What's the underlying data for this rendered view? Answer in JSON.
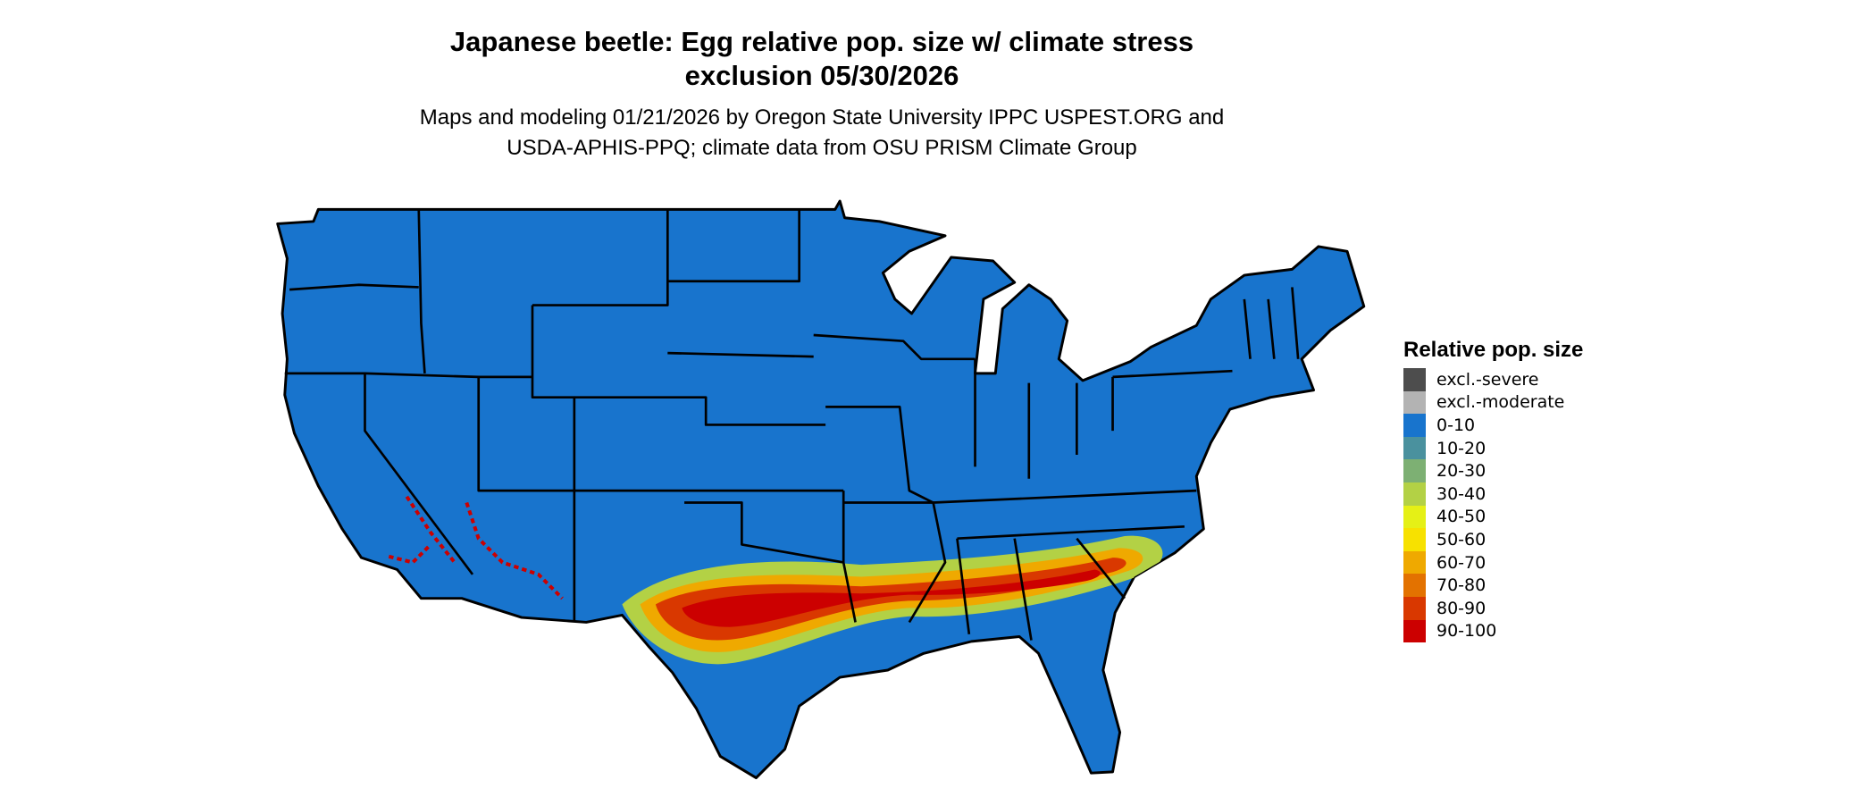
{
  "title": {
    "line1": "Japanese beetle: Egg relative pop. size w/ climate stress",
    "line2": "exclusion 05/30/2026"
  },
  "subtitle": {
    "line1": "Maps and modeling 01/21/2026 by Oregon State University IPPC USPEST.ORG and",
    "line2": "USDA-APHIS-PPQ; climate data from OSU PRISM Climate Group"
  },
  "map": {
    "region": "Contiguous United States",
    "base_color": "#1874CD",
    "border_color": "#000000"
  },
  "legend": {
    "title": "Relative pop. size",
    "items": [
      {
        "label": "excl.-severe",
        "color": "#4D4D4D"
      },
      {
        "label": "excl.-moderate",
        "color": "#B3B3B3"
      },
      {
        "label": "0-10",
        "color": "#1874CD"
      },
      {
        "label": "10-20",
        "color": "#4A919E"
      },
      {
        "label": "20-30",
        "color": "#7DB073"
      },
      {
        "label": "30-40",
        "color": "#B3D145"
      },
      {
        "label": "40-50",
        "color": "#E5F016"
      },
      {
        "label": "50-60",
        "color": "#F7E100"
      },
      {
        "label": "60-70",
        "color": "#EFA900"
      },
      {
        "label": "70-80",
        "color": "#E37200"
      },
      {
        "label": "80-90",
        "color": "#D93800"
      },
      {
        "label": "90-100",
        "color": "#CC0000"
      }
    ]
  }
}
